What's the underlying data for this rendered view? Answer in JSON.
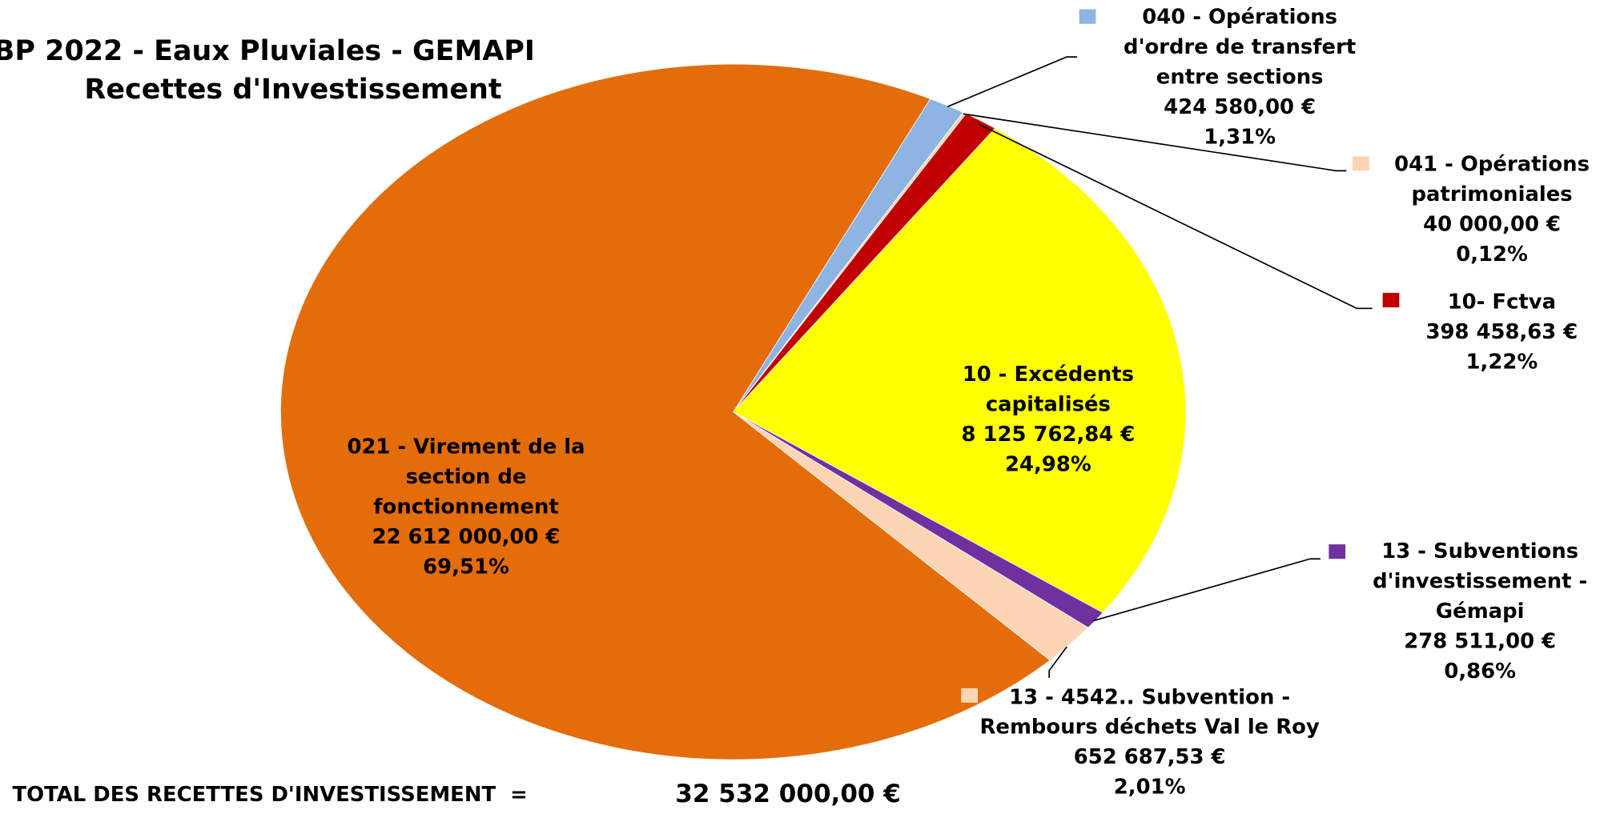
{
  "chart_data": {
    "type": "pie",
    "title": "BP 2022 - Eaux Pluviales - GEMAPI",
    "subtitle": "Recettes d'Investissement",
    "categories": [
      "040 - Opérations d'ordre de transfert entre sections",
      "041 - Opérations patrimoniales",
      "10- Fctva",
      "10 - Excédents capitalisés",
      "13 - Subventions d'investissement - Gémapi",
      "13 - 4542.. Subvention - Rembours déchets Val le Roy",
      "021 - Virement de la section de fonctionnement"
    ],
    "values": [
      1.31,
      0.12,
      1.22,
      24.98,
      0.86,
      2.01,
      69.51
    ],
    "value_labels": [
      "1,31%",
      "0,12%",
      "1,22%",
      "24,98%",
      "0,86%",
      "2,01%",
      "69,51%"
    ],
    "amounts": [
      "424 580,00 €",
      "40 000,00 €",
      "398 458,63 €",
      "8 125 762,84 €",
      "278 511,00 €",
      "652 687,53 €",
      "22 612 000,00 €"
    ],
    "colors": [
      "#8db4e2",
      "#fcd5b5",
      "#c00000",
      "#ffff00",
      "#7030a0",
      "#fcd5b5",
      "#e46c0a"
    ],
    "total_label": "TOTAL DES RECETTES D'INVESTISSEMENT  =",
    "total_value_label": "32 532 000,00 €"
  }
}
